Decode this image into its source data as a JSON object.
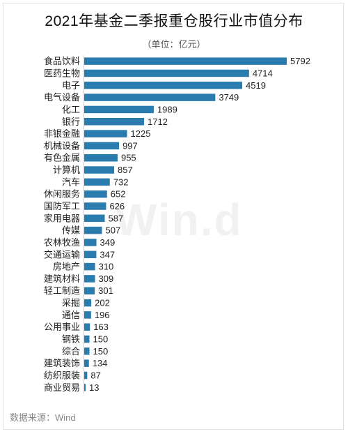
{
  "title": "2021年基金二季报重仓股行业市值分布",
  "unit": "（单位：亿元）",
  "watermark": "Win.d",
  "source": "数据来源：Wind",
  "colors": {
    "bar": "#2a7cae",
    "axis": "#cccccc"
  },
  "chart_data": {
    "type": "bar",
    "orientation": "horizontal",
    "title": "2021年基金二季报重仓股行业市值分布",
    "subtitle": "（单位：亿元）",
    "categories": [
      "食品饮料",
      "医药生物",
      "电子",
      "电气设备",
      "化工",
      "银行",
      "非银金融",
      "机械设备",
      "有色金属",
      "计算机",
      "汽车",
      "休闲服务",
      "国防军工",
      "家用电器",
      "传媒",
      "农林牧渔",
      "交通运输",
      "房地产",
      "建筑材料",
      "轻工制造",
      "采掘",
      "通信",
      "公用事业",
      "钢铁",
      "综合",
      "建筑装饰",
      "纺织服装",
      "商业贸易"
    ],
    "values": [
      5792,
      4714,
      4519,
      3749,
      1989,
      1712,
      1225,
      997,
      955,
      857,
      732,
      652,
      626,
      587,
      507,
      349,
      347,
      310,
      309,
      301,
      202,
      196,
      163,
      150,
      150,
      134,
      87,
      13
    ],
    "xlim": [
      0,
      5792
    ],
    "grid": false,
    "legend": "none"
  }
}
